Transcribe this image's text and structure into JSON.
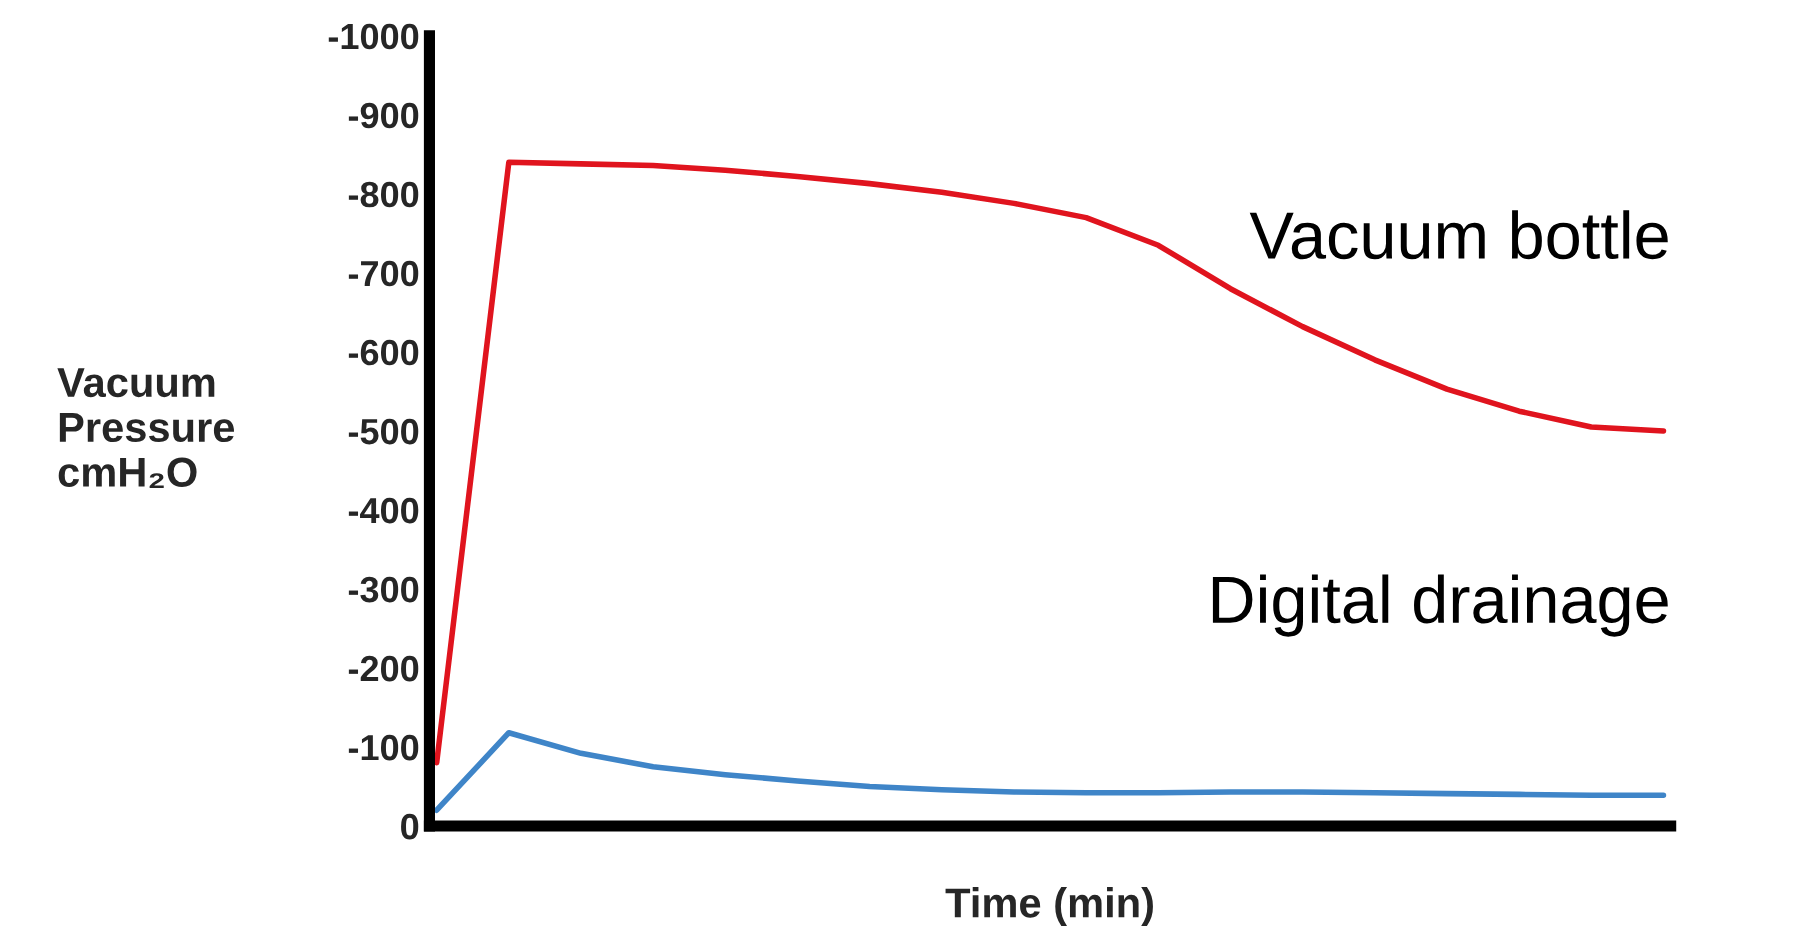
{
  "chart_data": {
    "type": "line",
    "xlabel": "Time (min)",
    "ylabel": "Vacuum\nPressure\ncmH₂O",
    "categories": [
      null,
      null,
      null,
      null,
      null,
      null,
      null,
      null,
      null,
      null,
      null,
      null,
      null,
      null,
      null,
      null,
      null,
      null
    ],
    "series": [
      {
        "name": "Vacuum bottle",
        "color": "#e0141e",
        "values": [
          -80,
          -840,
          -838,
          -836,
          -830,
          -822,
          -813,
          -802,
          -788,
          -770,
          -735,
          -680,
          -632,
          -590,
          -553,
          -525,
          -505,
          -500
        ]
      },
      {
        "name": "Digital drainage",
        "color": "#3f85c8",
        "values": [
          -20,
          -118,
          -92,
          -75,
          -65,
          -57,
          -50,
          -46,
          -43,
          -42,
          -42,
          -43,
          -43,
          -42,
          -41,
          -40,
          -39,
          -39
        ]
      }
    ],
    "ylim": [
      0,
      -1000
    ],
    "yticks": [
      0,
      -100,
      -200,
      -300,
      -400,
      -500,
      -600,
      -700,
      -800,
      -900,
      -1000
    ],
    "tick_labels": "y",
    "legend": false,
    "grid": false
  }
}
